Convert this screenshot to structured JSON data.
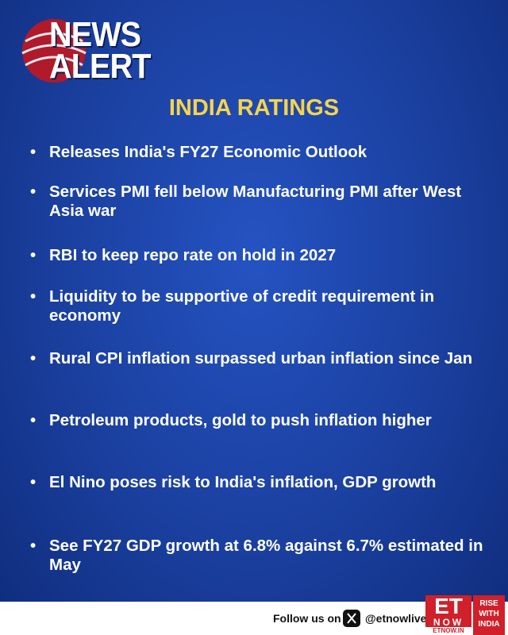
{
  "logo": {
    "line1": "NEWS",
    "line2": "ALERT"
  },
  "heading": "INDIA RATINGS",
  "bullets": [
    "Releases India's FY27 Economic Outlook",
    "Services PMI fell below Manufacturing PMI after West Asia war",
    "RBI to keep repo rate on hold in 2027",
    "Liquidity to be supportive of credit requirement in economy",
    "Rural CPI inflation surpassed urban inflation since Jan",
    "Petroleum products, gold to push inflation higher",
    "El Nino poses risk to India's inflation, GDP growth",
    "See FY27 GDP growth at 6.8% against 6.7% estimated in May"
  ],
  "footer": {
    "follow": "Follow us on",
    "handle": "@etnowlive",
    "brand": {
      "et": "ET",
      "now": "NOW",
      "site": "ETNOW.IN",
      "tagline": [
        "RISE",
        "WITH",
        "INDIA"
      ]
    }
  }
}
